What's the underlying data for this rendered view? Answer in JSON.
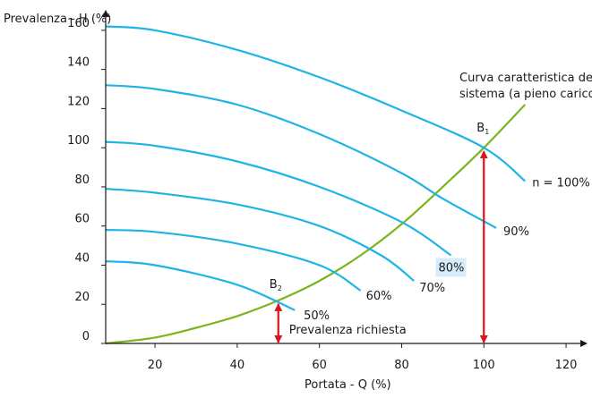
{
  "chart_data": {
    "type": "line",
    "xlabel": "Portata - Q (%)",
    "ylabel": "Prevalenza - H (%)",
    "xlim": [
      8,
      125
    ],
    "ylim": [
      0,
      170
    ],
    "x_ticks": [
      "20",
      "40",
      "60",
      "80",
      "100",
      "120"
    ],
    "y_ticks": [
      "0",
      "20",
      "40",
      "60",
      "80",
      "100",
      "120",
      "140",
      "160"
    ],
    "colors": {
      "pump_curve": "#1eb4e6",
      "system_curve": "#7ab51d",
      "arrow": "#d9141d",
      "label_highlight": "#d6ecfa"
    },
    "pump_curves": [
      {
        "label": "n = 100%",
        "x": [
          8,
          20,
          40,
          60,
          80,
          100,
          110
        ],
        "y": [
          162,
          160,
          150,
          136,
          119,
          100,
          83
        ]
      },
      {
        "label": "90%",
        "x": [
          8,
          20,
          40,
          60,
          80,
          90,
          103
        ],
        "y": [
          132,
          130,
          122,
          107,
          87,
          74,
          59
        ]
      },
      {
        "label": "80%",
        "x": [
          8,
          20,
          40,
          60,
          80,
          92
        ],
        "y": [
          103,
          101,
          93,
          80,
          62,
          45
        ]
      },
      {
        "label": "70%",
        "x": [
          8,
          20,
          40,
          60,
          75,
          83
        ],
        "y": [
          79,
          77,
          71,
          60,
          45,
          32
        ]
      },
      {
        "label": "60%",
        "x": [
          8,
          20,
          40,
          60,
          70
        ],
        "y": [
          58,
          57,
          51,
          40,
          27
        ]
      },
      {
        "label": "50%",
        "x": [
          8,
          20,
          40,
          54
        ],
        "y": [
          42,
          40,
          30,
          17
        ]
      }
    ],
    "system_curve": {
      "label_line1": "Curva caratteristica del",
      "label_line2": "sistema (a pieno carico)",
      "x": [
        8,
        20,
        30,
        40,
        50,
        60,
        70,
        80,
        90,
        100,
        110
      ],
      "y": [
        0,
        3,
        8,
        14,
        22,
        32,
        45,
        61,
        80,
        100,
        122
      ]
    },
    "points": [
      {
        "label": "B",
        "subscript": "1",
        "x": 100,
        "y": 100
      },
      {
        "label": "B",
        "subscript": "2",
        "x": 50,
        "y": 22
      }
    ],
    "arrows": [
      {
        "x": 100,
        "y_from": 0,
        "y_to": 100
      },
      {
        "x": 50,
        "y_from": 0,
        "y_to": 22,
        "label": "Prevalenza richiesta"
      }
    ]
  }
}
